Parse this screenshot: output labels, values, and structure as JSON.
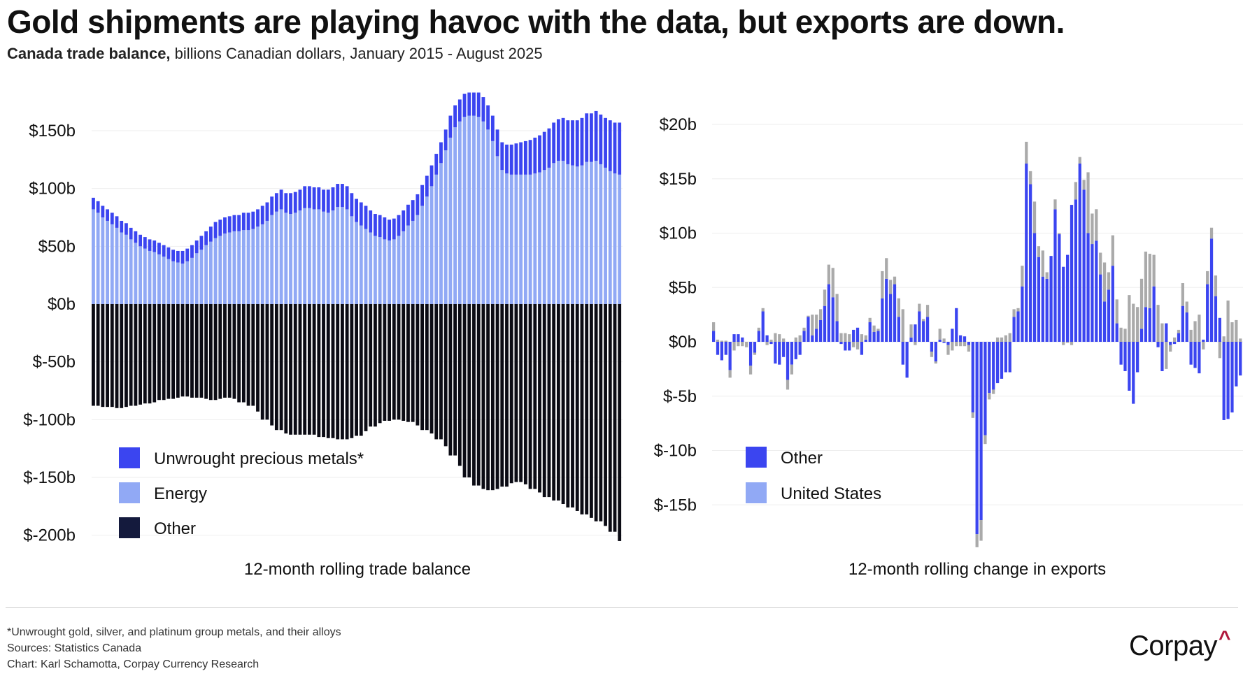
{
  "header": {
    "title": "Gold shipments are playing havoc with the data, but exports are down.",
    "subtitle_bold": "Canada trade balance,",
    "subtitle_rest": " billions Canadian dollars, January 2015 - August 2025"
  },
  "colors": {
    "precious_metals": "#3b45f0",
    "energy": "#91a9f5",
    "other_left": "#0b0b14",
    "legend_other_left": "#141a3d",
    "other_right": "#3b45f0",
    "united_states_legend": "#91a9f5",
    "united_states_bar": "#aaaaaa",
    "grid": "#eeeeee"
  },
  "chart_data": [
    {
      "type": "bar",
      "stacked": true,
      "title": "12-month rolling trade balance",
      "xlabel": "12-month rolling trade balance",
      "ylabel": "",
      "period": "January 2015 - August 2025",
      "ylim": [
        -205,
        185
      ],
      "yticks": [
        150,
        100,
        50,
        0,
        -50,
        -100,
        -150,
        -200
      ],
      "ytick_labels": [
        "$150b",
        "$100b",
        "$50b",
        "$0b",
        "$-50b",
        "$-100b",
        "$-150b",
        "$-200b"
      ],
      "grid": true,
      "legend_position": "bottom-left",
      "series": [
        {
          "name": "Energy",
          "values": [
            82,
            79,
            75,
            72,
            69,
            66,
            62,
            60,
            56,
            53,
            50,
            48,
            46,
            45,
            43,
            41,
            39,
            37,
            36,
            35,
            37,
            40,
            44,
            47,
            51,
            54,
            57,
            59,
            61,
            62,
            63,
            63,
            64,
            64,
            65,
            67,
            69,
            72,
            77,
            80,
            82,
            79,
            78,
            79,
            81,
            83,
            83,
            82,
            82,
            80,
            79,
            81,
            84,
            84,
            82,
            76,
            71,
            68,
            65,
            62,
            59,
            58,
            56,
            55,
            56,
            59,
            63,
            68,
            72,
            77,
            85,
            93,
            102,
            112,
            122,
            133,
            144,
            153,
            158,
            162,
            163,
            163,
            162,
            158,
            151,
            141,
            128,
            116,
            113,
            112,
            112,
            112,
            112,
            112,
            113,
            114,
            116,
            118,
            122,
            124,
            124,
            121,
            120,
            119,
            120,
            123,
            123,
            124,
            121,
            118,
            115,
            113,
            112
          ],
          "note": "approximate"
        },
        {
          "name": "Unwrought precious metals*",
          "values": [
            10,
            10,
            10,
            10,
            10,
            10,
            10,
            10,
            10,
            10,
            10,
            10,
            10,
            10,
            10,
            10,
            10,
            10,
            10,
            11,
            11,
            11,
            11,
            12,
            12,
            13,
            14,
            14,
            14,
            14,
            14,
            14,
            15,
            15,
            15,
            15,
            16,
            16,
            16,
            16,
            17,
            17,
            18,
            18,
            18,
            19,
            19,
            19,
            19,
            19,
            20,
            20,
            20,
            20,
            20,
            20,
            20,
            20,
            20,
            19,
            19,
            19,
            19,
            18,
            18,
            18,
            18,
            18,
            18,
            18,
            18,
            18,
            18,
            18,
            18,
            18,
            19,
            19,
            19,
            20,
            20,
            20,
            21,
            21,
            21,
            22,
            23,
            24,
            25,
            26,
            27,
            28,
            29,
            30,
            31,
            32,
            33,
            34,
            35,
            36,
            37,
            38,
            39,
            40,
            41,
            42,
            42,
            43,
            43,
            43,
            44,
            44,
            45
          ],
          "note": "approximate"
        },
        {
          "name": "Other",
          "values": [
            -88,
            -89,
            -89,
            -90,
            -89,
            -88,
            -87,
            -86,
            -85,
            -83,
            -82,
            -81,
            -80,
            -81,
            -81,
            -82,
            -83,
            -82,
            -81,
            -82,
            -85,
            -88,
            -93,
            -100,
            -105,
            -109,
            -112,
            -113,
            -113,
            -113,
            -113,
            -115,
            -116,
            -117,
            -117,
            -116,
            -114,
            -110,
            -106,
            -103,
            -101,
            -100,
            -101,
            -102,
            -105,
            -109,
            -112,
            -117,
            -123,
            -131,
            -140,
            -150,
            -157,
            -160,
            -161,
            -160,
            -158,
            -155,
            -154,
            -156,
            -160,
            -163,
            -167,
            -170,
            -173,
            -176,
            -179,
            -182,
            -185,
            -188,
            -192,
            -197,
            -205
          ],
          "note": "approximate, spans the tail of the period"
        }
      ]
    },
    {
      "type": "bar",
      "stacked": true,
      "title": "12-month rolling change in exports",
      "xlabel": "12-month rolling change in exports",
      "ylabel": "",
      "ylim": [
        -19.5,
        22.5
      ],
      "yticks": [
        20,
        15,
        10,
        5,
        0,
        -5,
        -10,
        -15
      ],
      "ytick_labels": [
        "$20b",
        "$15b",
        "$10b",
        "$5b",
        "$0b",
        "$-5b",
        "$-10b",
        "$-15b"
      ],
      "grid": true,
      "legend_position": "bottom-left",
      "series": [
        {
          "name": "Other",
          "values": [
            1.0,
            -1.2,
            -1.7,
            -1.2,
            -2.6,
            0.7,
            0.7,
            0.4,
            0,
            -2.2,
            -1.0,
            1.0,
            2.8,
            0.6,
            -0.2,
            -2.0,
            -2.1,
            -1.4,
            -3.5,
            -2.1,
            -1.6,
            -1.2,
            1.0,
            2.3,
            0.6,
            1.2,
            2.0,
            3.3,
            5.3,
            4.1,
            1.9,
            -0.2,
            -0.8,
            -0.8,
            1.1,
            1.3,
            -1.2,
            0.2,
            1.8,
            0.9,
            1.0,
            4.0,
            5.8,
            4.4,
            5.3,
            2.3,
            -2.1,
            -3.3,
            0.4,
            1.6,
            2.8,
            1.9,
            2.3,
            -0.9,
            -1.8,
            0.2,
            -0.1,
            -0.3,
            1.2,
            3.1,
            0.6,
            0.5,
            -0.3,
            -6.5,
            -17.7,
            -16.4,
            -8.6,
            -4.7,
            -4.4,
            -3.8,
            -3.4,
            -2.8,
            -2.8,
            2.3,
            2.8,
            5.1,
            16.4,
            14.5,
            10.0,
            7.8,
            6.0,
            5.8,
            7.9,
            12.2,
            9.9,
            6.9,
            8.0,
            12.6,
            13.1,
            16.4,
            14.0,
            10.0,
            9.0,
            9.3,
            6.2,
            3.7,
            4.8,
            7.0,
            1.7,
            -2.1,
            -2.7,
            -4.5,
            -5.7,
            -2.8,
            1.2,
            3.2,
            3.1,
            5.1,
            -0.5,
            -2.7,
            1.7,
            -0.3,
            -0.2,
            0.8,
            3.3,
            2.7,
            -2.1,
            -2.4,
            -2.9,
            0.2,
            5.3,
            9.5,
            4.2,
            2.2,
            -7.2,
            -7.1,
            -6.5,
            -4.1,
            -3.1
          ],
          "note": "approximate"
        },
        {
          "name": "United States",
          "values": [
            0.8,
            0.2,
            0.1,
            0.1,
            -0.7,
            -0.8,
            -0.4,
            -0.4,
            -0.5,
            -0.8,
            -0.2,
            0.3,
            0.3,
            -0.3,
            0.2,
            0.8,
            0.7,
            0.3,
            -0.9,
            -0.9,
            0.4,
            0.6,
            0.3,
            0.1,
            1.9,
            1.3,
            1.0,
            1.5,
            1.8,
            2.7,
            2.5,
            0.8,
            0.8,
            0.7,
            -0.5,
            -0.7,
            0.7,
            0.4,
            0.4,
            0.6,
            0.2,
            2.5,
            1.9,
            1.3,
            0.7,
            1.7,
            3.0,
            0,
            1.2,
            -0.3,
            0.7,
            0.2,
            1.1,
            -0.5,
            -0.2,
            1.0,
            0.3,
            -0.9,
            -0.8,
            -0.4,
            -0.4,
            -0.4,
            -0.6,
            -0.5,
            -1.2,
            -1.9,
            -0.8,
            -0.6,
            -0.4,
            0.4,
            0.4,
            0.6,
            0.8,
            0.7,
            0.3,
            1.9,
            2.0,
            1.2,
            2.9,
            1.0,
            2.4,
            0.6,
            0.0,
            0.9,
            0.1,
            -0.3,
            -0.1,
            -0.3,
            1.6,
            0.6,
            0.9,
            5.6,
            2.8,
            2.9,
            2.0,
            3.6,
            1.6,
            2.8,
            2.2,
            1.3,
            1.2,
            4.3,
            3.5,
            3.2,
            4.6,
            5.1,
            5.0,
            2.9,
            3.4,
            1.7,
            -2.5,
            -0.6,
            0.4,
            0.3,
            2.1,
            1.0,
            1.1,
            1.9,
            2.5,
            -0.7,
            1.2,
            1.0,
            1.9,
            -1.5,
            0.5,
            3.8,
            1.8,
            2.0,
            0.3
          ],
          "note": "approximate; US portion rendered in grey"
        }
      ]
    }
  ],
  "legend_left": [
    {
      "label": "Unwrought precious metals*"
    },
    {
      "label": "Energy"
    },
    {
      "label": "Other"
    }
  ],
  "legend_right": [
    {
      "label": "Other"
    },
    {
      "label": "United States"
    }
  ],
  "footer": {
    "note": "*Unwrought gold, silver, and platinum group metals, and their alloys",
    "sources": "Sources: Statistics Canada",
    "credit": "Chart: Karl Schamotta, Corpay Currency Research",
    "logo_text": "Corpay",
    "logo_mark": "^"
  }
}
